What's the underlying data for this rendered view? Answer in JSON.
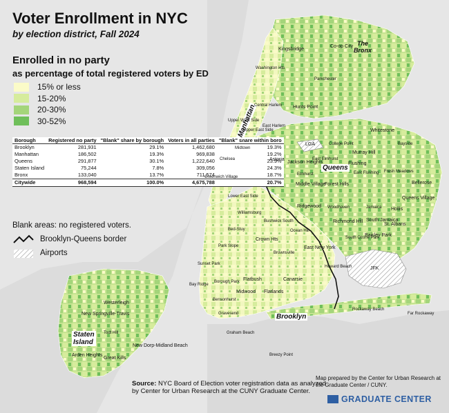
{
  "title": "Voter Enrollment in NYC",
  "subtitle": "by election district, Fall 2024",
  "legend": {
    "heading": "Enrolled in no party",
    "subheading": "as percentage of total registered voters by ED",
    "items": [
      {
        "label": "15% or less",
        "color": "#fbfbc8"
      },
      {
        "label": "15-20%",
        "color": "#d6ec9c"
      },
      {
        "label": "20-30%",
        "color": "#a4d57a"
      },
      {
        "label": "30-52%",
        "color": "#6fbf5a"
      }
    ]
  },
  "table": {
    "headers": [
      "Borough",
      "Registered no party",
      "\"Blank\" share by borough",
      "Voters in all parties",
      "\"Blank\" share within boro"
    ],
    "rows": [
      {
        "borough": "Brooklyn",
        "registered": "281,931",
        "share_by_borough": "29.1%",
        "voters": "1,462,680",
        "share_within": "19.3%"
      },
      {
        "borough": "Manhattan",
        "registered": "186,502",
        "share_by_borough": "19.3%",
        "voters": "969,838",
        "share_within": "19.2%"
      },
      {
        "borough": "Queens",
        "registered": "291,877",
        "share_by_borough": "30.1%",
        "voters": "1,222,640",
        "share_within": "23.9%"
      },
      {
        "borough": "Staten Island",
        "registered": "75,244",
        "share_by_borough": "7.8%",
        "voters": "309,056",
        "share_within": "24.3%"
      },
      {
        "borough": "Bronx",
        "registered": "133,040",
        "share_by_borough": "13.7%",
        "voters": "711,574",
        "share_within": "18.7%"
      }
    ],
    "total": {
      "borough": "Citywide",
      "registered": "968,594",
      "share_by_borough": "100.0%",
      "voters": "4,675,788",
      "share_within": "20.7%"
    }
  },
  "notes": {
    "blank_areas": "Blank areas: no registered voters.",
    "border": "Brooklyn-Queens border",
    "airports": "Airports"
  },
  "source": {
    "label": "Source:",
    "text": "NYC Board of Election voter registration data as analyzed by Center for Urban Research at the CUNY Graduate Center."
  },
  "credit": "Map prepared by the Center for Urban Research at the Graduate Center / CUNY.",
  "logo": {
    "mark": "CUNY",
    "text": "GRADUATE CENTER"
  },
  "boroughs": {
    "manhattan": "Manhattan",
    "queens": "Queens",
    "brooklyn": "Brooklyn",
    "staten_island": "Staten\nIsland",
    "bronx": "The\nBronx"
  },
  "places": [
    "Kingsbridge",
    "Co-op City",
    "Washington Hts",
    "Parkchester",
    "Hunts Point",
    "Central Harlem",
    "East Harlem",
    "Upper West Side",
    "Upper East Side",
    "Midtown",
    "Chelsea",
    "Greenwich Village",
    "Lower East Side",
    "Whitestone",
    "College Point",
    "Bayside",
    "Murray Hill",
    "Astoria",
    "Jackson Heights",
    "East Elmhurst",
    "Flushing",
    "East Flushing",
    "Fresh Meadows",
    "Bellerose",
    "Queens Village",
    "Hollis",
    "Jamaica",
    "South Jamaica",
    "St. Albans",
    "Baisley Park",
    "South Ozone Park",
    "Richmond Hill",
    "Woodhaven",
    "Middle Village",
    "Forest Hills",
    "Ridgewood",
    "Elmhurst",
    "Williamsburg",
    "Bushwick South",
    "Bed-Stuy",
    "Crown Hts",
    "East New York",
    "Brownsville",
    "Park Slope",
    "Sunset Park",
    "Bay Ridge",
    "Borough Park",
    "Flatbush",
    "Midwood",
    "Flatlands",
    "Canarsie",
    "Bensonhurst",
    "Gravesend",
    "Graham Beach",
    "Rockaway Beach",
    "Far Rockaway",
    "Breezy Point",
    "JFK",
    "Westerleigh",
    "New Springville-Travis",
    "New Dorp-Midland Beach",
    "Arden Heights",
    "Great Kills",
    "Todt Hill",
    "Ocean Hill",
    "Howard Beach",
    "LGA"
  ]
}
